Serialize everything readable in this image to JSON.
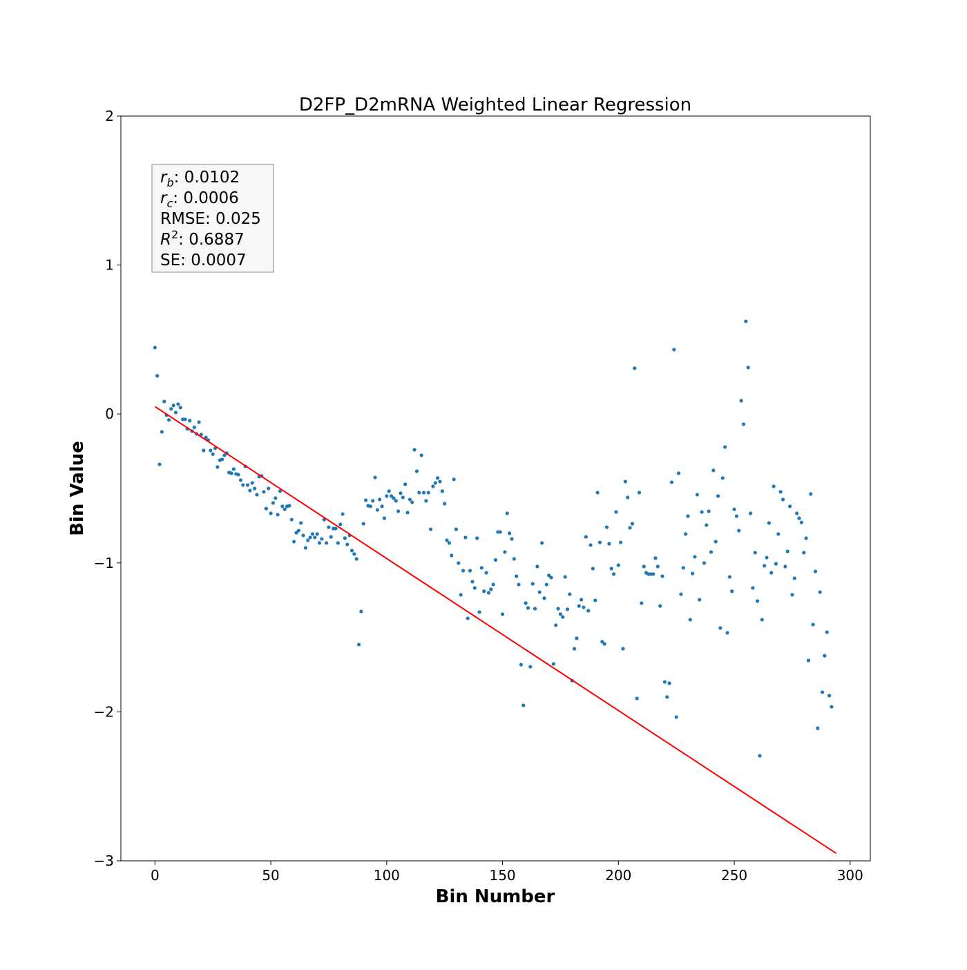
{
  "chart_data": {
    "type": "scatter",
    "title": "D2FP_D2mRNA Weighted Linear Regression",
    "x_label": "Bin Number",
    "y_label": "Bin Value",
    "xlim": [
      -14.7,
      308.7
    ],
    "ylim": [
      -3,
      2
    ],
    "xticks": [
      0,
      50,
      100,
      150,
      200,
      250,
      300
    ],
    "yticks": [
      {
        "value": -3,
        "label": "−3"
      },
      {
        "value": -2,
        "label": "−2"
      },
      {
        "value": -1,
        "label": "−1"
      },
      0,
      1,
      2
    ],
    "grid": false,
    "series": [
      {
        "color": "#1f77b4",
        "x": [
          0,
          1,
          2,
          3,
          4,
          5,
          6,
          7,
          8,
          9,
          10,
          11,
          12,
          13,
          14,
          15,
          16,
          17,
          18,
          19,
          20,
          21,
          22,
          23,
          24,
          25,
          26,
          27,
          28,
          29,
          30,
          31,
          32,
          33,
          34,
          35,
          36,
          37,
          38,
          39,
          40,
          41,
          42,
          43,
          44,
          45,
          46,
          47,
          48,
          49,
          50,
          51,
          52,
          53,
          54,
          55,
          56,
          57,
          58,
          59,
          60,
          61,
          62,
          63,
          64,
          65,
          66,
          67,
          68,
          69,
          70,
          71,
          72,
          73,
          74,
          75,
          76,
          77,
          78,
          79,
          80,
          81,
          82,
          83,
          84,
          85,
          86,
          87,
          88,
          89,
          90,
          91,
          92,
          93,
          94,
          95,
          96,
          97,
          98,
          99,
          100,
          101,
          102,
          103,
          104,
          105,
          106,
          107,
          108,
          109,
          110,
          111,
          112,
          113,
          114,
          115,
          116,
          117,
          118,
          119,
          120,
          121,
          122,
          123,
          124,
          125,
          126,
          127,
          128,
          129,
          130,
          131,
          132,
          133,
          134,
          135,
          136,
          137,
          138,
          139,
          140,
          141,
          142,
          143,
          144,
          145,
          146,
          147,
          148,
          149,
          150,
          151,
          152,
          153,
          154,
          155,
          156,
          157,
          158,
          159,
          160,
          161,
          162,
          163,
          164,
          165,
          166,
          167,
          168,
          169,
          170,
          171,
          172,
          173,
          174,
          175,
          176,
          177,
          178,
          179,
          180,
          181,
          182,
          183,
          184,
          185,
          186,
          187,
          188,
          189,
          190,
          191,
          192,
          193,
          194,
          195,
          196,
          197,
          198,
          199,
          200,
          201,
          202,
          203,
          204,
          205,
          206,
          207,
          208,
          209,
          210,
          211,
          212,
          213,
          214,
          215,
          216,
          217,
          218,
          219,
          220,
          221,
          222,
          223,
          224,
          225,
          226,
          227,
          228,
          229,
          230,
          231,
          232,
          233,
          234,
          235,
          236,
          237,
          238,
          239,
          240,
          241,
          242,
          243,
          244,
          245,
          246,
          247,
          248,
          249,
          250,
          251,
          252,
          253,
          254,
          255,
          256,
          257,
          258,
          259,
          260,
          261,
          262,
          263,
          264,
          265,
          266,
          267,
          268,
          269,
          270,
          271,
          272,
          273,
          274,
          275,
          276,
          277,
          278,
          279,
          280,
          281,
          282,
          283,
          284,
          285,
          286,
          287,
          288,
          289,
          290,
          291,
          292
        ],
        "values": [
          0.446,
          0.256,
          -0.338,
          -0.12,
          0.084,
          -0.008,
          -0.04,
          0.034,
          0.057,
          0.01,
          0.066,
          0.043,
          -0.036,
          -0.036,
          -0.1,
          -0.045,
          -0.115,
          -0.09,
          -0.134,
          -0.055,
          -0.138,
          -0.245,
          -0.157,
          -0.175,
          -0.245,
          -0.27,
          -0.23,
          -0.356,
          -0.31,
          -0.305,
          -0.277,
          -0.263,
          -0.393,
          -0.398,
          -0.37,
          -0.403,
          -0.407,
          -0.444,
          -0.477,
          -0.352,
          -0.477,
          -0.514,
          -0.463,
          -0.5,
          -0.542,
          -0.42,
          -0.416,
          -0.523,
          -0.635,
          -0.5,
          -0.667,
          -0.597,
          -0.565,
          -0.676,
          -0.518,
          -0.62,
          -0.64,
          -0.62,
          -0.616,
          -0.709,
          -0.857,
          -0.797,
          -0.783,
          -0.732,
          -0.815,
          -0.899,
          -0.848,
          -0.829,
          -0.806,
          -0.829,
          -0.806,
          -0.866,
          -0.839,
          -0.709,
          -0.866,
          -0.76,
          -0.825,
          -0.769,
          -0.769,
          -0.866,
          -0.741,
          -0.672,
          -0.834,
          -0.876,
          -0.815,
          -0.917,
          -0.94,
          -0.973,
          -1.548,
          -1.326,
          -0.737,
          -0.579,
          -0.616,
          -0.62,
          -0.583,
          -0.426,
          -0.644,
          -0.574,
          -0.62,
          -0.7,
          -0.551,
          -0.518,
          -0.551,
          -0.565,
          -0.583,
          -0.653,
          -0.532,
          -0.56,
          -0.472,
          -0.662,
          -0.574,
          -0.593,
          -0.24,
          -0.384,
          -0.528,
          -0.277,
          -0.528,
          -0.583,
          -0.528,
          -0.774,
          -0.486,
          -0.463,
          -0.43,
          -0.454,
          -0.518,
          -0.602,
          -0.848,
          -0.866,
          -0.95,
          -0.439,
          -0.774,
          -1.001,
          -1.214,
          -1.052,
          -0.829,
          -1.372,
          -1.052,
          -1.126,
          -1.168,
          -0.834,
          -1.33,
          -1.033,
          -1.19,
          -1.066,
          -1.2,
          -1.177,
          -1.145,
          -0.98,
          -0.792,
          -0.792,
          -1.344,
          -0.927,
          -0.667,
          -0.801,
          -0.839,
          -0.973,
          -1.089,
          -1.145,
          -1.683,
          -1.956,
          -1.27,
          -1.302,
          -1.697,
          -1.14,
          -1.307,
          -1.024,
          -1.196,
          -0.866,
          -1.237,
          -1.145,
          -1.084,
          -1.098,
          -1.678,
          -1.418,
          -1.307,
          -1.344,
          -1.363,
          -1.094,
          -1.311,
          -1.21,
          -1.79,
          -1.576,
          -1.506,
          -1.289,
          -1.247,
          -1.298,
          -0.825,
          -1.321,
          -0.88,
          -1.038,
          -1.251,
          -0.528,
          -0.862,
          -1.529,
          -1.544,
          -0.76,
          -0.871,
          -1.038,
          -1.075,
          -0.658,
          -1.015,
          -0.862,
          -1.576,
          -0.454,
          -0.56,
          -0.764,
          -0.737,
          0.307,
          -1.91,
          -0.528,
          -1.27,
          -1.024,
          -1.066,
          -1.075,
          -1.075,
          -1.075,
          -0.968,
          -1.024,
          -1.289,
          -1.089,
          -1.799,
          -1.9,
          -1.808,
          -0.458,
          0.432,
          -2.035,
          -0.398,
          -1.21,
          -1.033,
          -0.806,
          -0.686,
          -1.381,
          -1.071,
          -0.959,
          -0.542,
          -1.247,
          -0.658,
          -1.001,
          -0.746,
          -0.653,
          -0.927,
          -0.379,
          -0.857,
          -0.551,
          -1.437,
          -0.43,
          -0.222,
          -1.469,
          -1.094,
          -1.19,
          -0.64,
          -0.686,
          -0.783,
          0.089,
          -0.069,
          0.622,
          0.312,
          -0.667,
          -1.168,
          -0.931,
          -1.256,
          -2.295,
          -1.381,
          -1.019,
          -0.964,
          -0.732,
          -1.066,
          -0.486,
          -1.006,
          -0.806,
          -0.523,
          -0.574,
          -1.024,
          -0.922,
          -0.62,
          -1.214,
          -1.103,
          -0.667,
          -0.7,
          -0.728,
          -0.931,
          -0.834,
          -1.655,
          -0.537,
          -1.414,
          -1.057,
          -2.11,
          -1.196,
          -1.868,
          -1.623,
          -1.465,
          -1.891,
          -1.966
        ]
      }
    ],
    "fit": {
      "color": "#ff0000",
      "x": [
        0,
        294
      ],
      "y": [
        0.05,
        -2.95
      ]
    },
    "annotation": [
      {
        "italic": "r",
        "sub": "b",
        "rest": ": 0.0102"
      },
      {
        "italic": "r",
        "sub": "c",
        "rest": ": 0.0006"
      },
      {
        "rest": "RMSE: 0.025"
      },
      {
        "italic": "R",
        "sup": "2",
        "rest": ": 0.6887"
      },
      {
        "rest": "SE: 0.0007"
      }
    ]
  }
}
